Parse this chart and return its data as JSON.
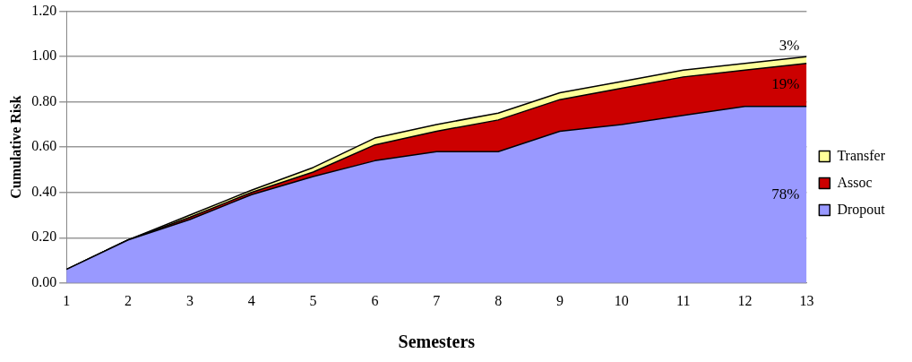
{
  "chart_data": {
    "type": "area",
    "stacked": true,
    "xlabel": "Semesters",
    "ylabel": "Cumulative Risk",
    "x": [
      1,
      2,
      3,
      4,
      5,
      6,
      7,
      8,
      9,
      10,
      11,
      12,
      13
    ],
    "xlim": [
      1,
      13
    ],
    "xticks": [
      1,
      2,
      3,
      4,
      5,
      6,
      7,
      8,
      9,
      10,
      11,
      12,
      13
    ],
    "ylim": [
      0,
      1.2
    ],
    "yticks": [
      {
        "value": 0,
        "label": "0.00"
      },
      {
        "value": 0.2,
        "label": "0.20"
      },
      {
        "value": 0.4,
        "label": "0.40"
      },
      {
        "value": 0.6,
        "label": "0.60"
      },
      {
        "value": 0.8,
        "label": "0.80"
      },
      {
        "value": 1,
        "label": "1.00"
      },
      {
        "value": 1.2,
        "label": "1.20"
      }
    ],
    "grid": "y",
    "legend": "right",
    "series": [
      {
        "name": "Dropout",
        "color": "#9999ff",
        "values": [
          0.06,
          0.19,
          0.28,
          0.39,
          0.47,
          0.54,
          0.58,
          0.58,
          0.67,
          0.7,
          0.74,
          0.78,
          0.78
        ]
      },
      {
        "name": "Assoc",
        "color": "#cc0000",
        "values": [
          0,
          0,
          0.01,
          0.01,
          0.02,
          0.07,
          0.09,
          0.14,
          0.14,
          0.16,
          0.17,
          0.16,
          0.19
        ]
      },
      {
        "name": "Transfer",
        "color": "#ffff99",
        "values": [
          0,
          0,
          0.01,
          0.01,
          0.02,
          0.03,
          0.03,
          0.03,
          0.03,
          0.03,
          0.03,
          0.03,
          0.03
        ]
      }
    ],
    "annotations": [
      "3%",
      "19%",
      "78%"
    ]
  }
}
